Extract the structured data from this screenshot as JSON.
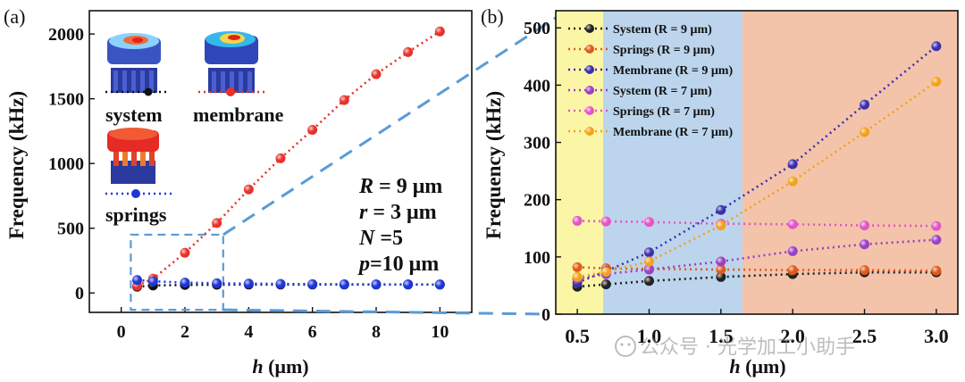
{
  "watermark": "公众号 · 光学加工小助手",
  "chart_data": [
    {
      "panel": "(a)",
      "type": "scatter",
      "xlabel_var": "h",
      "xlabel_unit": "(μm)",
      "ylabel": "Frequency (kHz)",
      "xlim": [
        -1,
        11
      ],
      "ylim": [
        -150,
        2180
      ],
      "xticks": [
        0,
        2,
        4,
        6,
        8,
        10
      ],
      "yticks": [
        0,
        500,
        1000,
        1500,
        2000
      ],
      "legend_labels": {
        "system": "system",
        "membrane": "membrane",
        "springs": "springs"
      },
      "params": [
        {
          "var": "R",
          "rest": " = 9 μm"
        },
        {
          "var": "r",
          "rest": " = 3 μm"
        },
        {
          "var": "N",
          "rest": " =5"
        },
        {
          "var": "p",
          "rest": "=10 μm"
        }
      ],
      "series": [
        {
          "name": "system",
          "color": "#111111",
          "x": [
            0.5,
            1,
            2,
            3,
            4,
            5,
            6,
            7,
            8,
            9,
            10
          ],
          "y": [
            48,
            58,
            62,
            64,
            65,
            65,
            65,
            65,
            65,
            65,
            65
          ]
        },
        {
          "name": "membrane",
          "color": "#e8312a",
          "x": [
            0.5,
            1,
            2,
            3,
            4,
            5,
            6,
            7,
            8,
            9,
            10
          ],
          "y": [
            55,
            110,
            310,
            540,
            800,
            1040,
            1260,
            1490,
            1690,
            1860,
            2020
          ]
        },
        {
          "name": "springs",
          "color": "#1f35d6",
          "x": [
            0.5,
            1,
            2,
            3,
            4,
            5,
            6,
            7,
            8,
            9,
            10
          ],
          "y": [
            100,
            90,
            80,
            75,
            72,
            70,
            68,
            67,
            66,
            66,
            65
          ]
        }
      ],
      "zoom_box": {
        "x": [
          0.3,
          3.2
        ],
        "y": [
          -130,
          450
        ]
      }
    },
    {
      "panel": "(b)",
      "type": "line",
      "xlabel_var": "h",
      "xlabel_unit": "(μm)",
      "ylabel": "Frequency (kHz)",
      "xlim": [
        0.35,
        3.15
      ],
      "ylim": [
        0,
        530
      ],
      "xticks": [
        0.5,
        1.0,
        1.5,
        2.0,
        2.5,
        3.0
      ],
      "xtick_labels": [
        "0.5",
        "1.0",
        "1.5",
        "2.0",
        "2.5",
        "3.0"
      ],
      "yticks": [
        0,
        100,
        200,
        300,
        400,
        500
      ],
      "regions": [
        {
          "x": [
            0.35,
            0.68
          ],
          "color": "#fbf6a6"
        },
        {
          "x": [
            0.68,
            1.65
          ],
          "color": "#bcd5ec"
        },
        {
          "x": [
            1.65,
            3.15
          ],
          "color": "#f4c4aa"
        }
      ],
      "series": [
        {
          "name": "System (R = 9 μm)",
          "color": "#222222",
          "x": [
            0.5,
            0.7,
            1.0,
            1.5,
            2.0,
            2.5,
            3.0
          ],
          "y": [
            48,
            52,
            58,
            65,
            70,
            73,
            73
          ]
        },
        {
          "name": "Springs (R = 9 μm)",
          "color": "#e0591c",
          "x": [
            0.5,
            0.7,
            1.0,
            1.5,
            2.0,
            2.5,
            3.0
          ],
          "y": [
            82,
            80,
            79,
            78,
            77,
            77,
            76
          ]
        },
        {
          "name": "Membrane (R = 9 μm)",
          "color": "#3c2fae",
          "x": [
            0.5,
            0.7,
            1.0,
            1.5,
            2.0,
            2.5,
            3.0
          ],
          "y": [
            55,
            75,
            108,
            182,
            262,
            366,
            468
          ]
        },
        {
          "name": "System (R = 7 μm)",
          "color": "#9b3fc4",
          "x": [
            0.5,
            0.7,
            1.0,
            1.5,
            2.0,
            2.5,
            3.0
          ],
          "y": [
            62,
            70,
            78,
            92,
            110,
            122,
            130
          ]
        },
        {
          "name": "Springs (R = 7 μm)",
          "color": "#e455c6",
          "x": [
            0.5,
            0.7,
            1.0,
            1.5,
            2.0,
            2.5,
            3.0
          ],
          "y": [
            163,
            162,
            161,
            158,
            157,
            155,
            154
          ]
        },
        {
          "name": "Membrane (R = 7 μm)",
          "color": "#f2a21a",
          "x": [
            0.5,
            0.7,
            1.0,
            1.5,
            2.0,
            2.5,
            3.0
          ],
          "y": [
            65,
            74,
            92,
            155,
            232,
            318,
            406
          ]
        }
      ]
    }
  ]
}
